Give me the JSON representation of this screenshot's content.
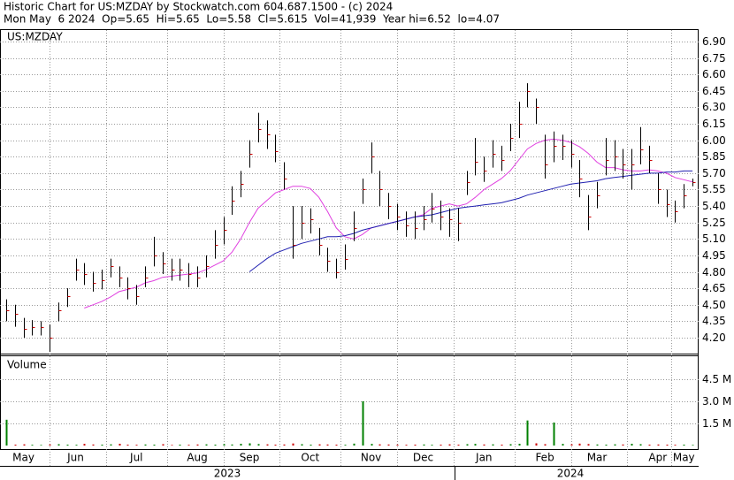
{
  "chart_data": {
    "type": "ohlc",
    "title": "Historic Chart for US:MZDAY by Stockwatch.com 604.687.1500 - (c) 2024",
    "subtitle": "Mon May  6 2024  Op=5.65  Hi=5.65  Lo=5.58  Cl=5.615  Vol=41,939  Year hi=6.52  lo=4.07",
    "symbol_label": "US:MZDAY",
    "categories": [
      null,
      null,
      "May",
      null,
      null,
      null,
      null,
      null,
      "Jun",
      null,
      null,
      null,
      null,
      null,
      null,
      "Jul",
      null,
      null,
      null,
      null,
      null,
      null,
      "Aug",
      null,
      null,
      null,
      null,
      null,
      "Sep",
      null,
      null,
      null,
      null,
      null,
      null,
      "Oct",
      null,
      null,
      null,
      null,
      null,
      null,
      "Nov",
      null,
      null,
      null,
      null,
      null,
      "Dec",
      null,
      null,
      null,
      null,
      null,
      null,
      "Jan",
      null,
      null,
      null,
      null,
      null,
      null,
      "Feb",
      null,
      null,
      null,
      null,
      null,
      "Mar",
      null,
      null,
      null,
      null,
      null,
      null,
      "Apr",
      null,
      null,
      "May",
      null
    ],
    "years": [
      "2023",
      "2024"
    ],
    "high": [
      4.55,
      4.5,
      4.38,
      4.36,
      4.35,
      4.32,
      4.52,
      4.65,
      4.92,
      4.88,
      4.8,
      4.82,
      4.92,
      4.85,
      4.75,
      4.68,
      4.85,
      5.12,
      4.98,
      4.92,
      4.92,
      4.88,
      4.85,
      4.95,
      5.18,
      5.3,
      5.58,
      5.72,
      6.0,
      6.25,
      6.18,
      6.05,
      5.8,
      5.4,
      5.4,
      5.38,
      5.2,
      5.02,
      4.92,
      5.05,
      5.35,
      5.65,
      5.98,
      5.72,
      5.52,
      5.42,
      5.35,
      5.35,
      5.4,
      5.52,
      5.45,
      5.38,
      5.38,
      5.72,
      6.02,
      5.85,
      6.0,
      5.95,
      6.15,
      6.35,
      6.52,
      6.38,
      6.05,
      6.08,
      6.05,
      6.0,
      5.82,
      5.5,
      5.62,
      6.02,
      6.0,
      5.92,
      5.92,
      6.12,
      5.95,
      5.7,
      5.55,
      5.45,
      5.6,
      5.65
    ],
    "low": [
      4.35,
      4.3,
      4.2,
      4.22,
      4.22,
      4.07,
      4.35,
      4.48,
      4.72,
      4.68,
      4.62,
      4.64,
      4.75,
      4.66,
      4.55,
      4.5,
      4.66,
      4.85,
      4.78,
      4.72,
      4.72,
      4.66,
      4.66,
      4.75,
      4.92,
      5.05,
      5.32,
      5.48,
      5.75,
      5.98,
      5.92,
      5.8,
      5.55,
      4.92,
      5.1,
      5.15,
      4.95,
      4.8,
      4.74,
      4.82,
      5.08,
      5.42,
      5.7,
      5.4,
      5.28,
      5.18,
      5.12,
      5.1,
      5.18,
      5.25,
      5.18,
      5.12,
      5.08,
      5.5,
      5.68,
      5.62,
      5.75,
      5.72,
      5.9,
      6.02,
      6.3,
      6.15,
      5.65,
      5.8,
      5.82,
      5.75,
      5.48,
      5.18,
      5.38,
      5.68,
      5.72,
      5.65,
      5.55,
      5.78,
      5.7,
      5.42,
      5.3,
      5.25,
      5.38,
      5.58
    ],
    "close": [
      4.45,
      4.42,
      4.28,
      4.3,
      4.3,
      4.2,
      4.45,
      4.58,
      4.82,
      4.78,
      4.7,
      4.72,
      4.85,
      4.75,
      4.65,
      4.58,
      4.75,
      4.95,
      4.88,
      4.82,
      4.82,
      4.78,
      4.75,
      4.85,
      5.05,
      5.18,
      5.45,
      5.6,
      5.88,
      6.1,
      6.05,
      5.9,
      5.65,
      5.05,
      5.25,
      5.28,
      5.05,
      4.9,
      4.8,
      4.92,
      5.2,
      5.55,
      5.85,
      5.55,
      5.4,
      5.3,
      5.22,
      5.2,
      5.28,
      5.38,
      5.3,
      5.28,
      5.25,
      5.62,
      5.8,
      5.72,
      5.88,
      5.82,
      6.02,
      6.15,
      6.45,
      6.3,
      5.78,
      5.95,
      5.95,
      5.88,
      5.65,
      5.3,
      5.5,
      5.82,
      5.85,
      5.78,
      5.78,
      5.92,
      5.82,
      5.55,
      5.42,
      5.35,
      5.5,
      5.615
    ],
    "bar_color": "#000000",
    "close_color": "#cc0000",
    "ma_short": {
      "color": "#e040e0",
      "values": [
        null,
        null,
        null,
        null,
        null,
        null,
        null,
        null,
        null,
        4.47,
        4.5,
        4.53,
        4.57,
        4.62,
        4.64,
        4.66,
        4.7,
        4.72,
        4.75,
        4.76,
        4.77,
        4.78,
        4.79,
        4.82,
        4.86,
        4.9,
        4.98,
        5.1,
        5.25,
        5.38,
        5.45,
        5.52,
        5.55,
        5.58,
        5.58,
        5.56,
        5.48,
        5.35,
        5.2,
        5.12,
        5.1,
        5.14,
        5.2,
        5.22,
        5.24,
        5.26,
        5.28,
        5.3,
        5.32,
        5.38,
        5.4,
        5.42,
        5.4,
        5.42,
        5.48,
        5.55,
        5.6,
        5.65,
        5.72,
        5.82,
        5.92,
        5.97,
        6.0,
        6.01,
        6.0,
        5.98,
        5.94,
        5.88,
        5.8,
        5.75,
        5.75,
        5.73,
        5.72,
        5.72,
        5.73,
        5.72,
        5.7,
        5.66,
        5.64,
        5.62
      ]
    },
    "ma_long": {
      "color": "#2020b0",
      "values": [
        null,
        null,
        null,
        null,
        null,
        null,
        null,
        null,
        null,
        null,
        null,
        null,
        null,
        null,
        null,
        null,
        null,
        null,
        null,
        null,
        null,
        null,
        null,
        null,
        null,
        null,
        null,
        null,
        4.8,
        4.86,
        4.92,
        4.97,
        5.0,
        5.03,
        5.06,
        5.08,
        5.1,
        5.12,
        5.12,
        5.13,
        5.15,
        5.18,
        5.2,
        5.22,
        5.24,
        5.26,
        5.28,
        5.3,
        5.31,
        5.32,
        5.34,
        5.36,
        5.38,
        5.39,
        5.4,
        5.41,
        5.42,
        5.43,
        5.45,
        5.47,
        5.5,
        5.52,
        5.54,
        5.56,
        5.58,
        5.6,
        5.61,
        5.62,
        5.63,
        5.65,
        5.66,
        5.67,
        5.68,
        5.69,
        5.7,
        5.7,
        5.71,
        5.71,
        5.72,
        5.72
      ]
    },
    "ylim": [
      4.055,
      6.98
    ],
    "yticks": [
      {
        "value": 4.2,
        "label": "4.20"
      },
      4.35,
      {
        "value": 4.5,
        "label": "4.50"
      },
      4.65,
      {
        "value": 4.8,
        "label": "4.80"
      },
      4.95,
      {
        "value": 5.1,
        "label": "5.10"
      },
      5.25,
      {
        "value": 5.4,
        "label": "5.40"
      },
      5.55,
      {
        "value": 5.7,
        "label": "5.70"
      },
      5.85,
      {
        "value": 6.0,
        "label": "6.00"
      },
      6.15,
      {
        "value": 6.3,
        "label": "6.30"
      },
      6.45,
      {
        "value": 6.6,
        "label": "6.60"
      },
      6.75,
      {
        "value": 6.9,
        "label": "6.90"
      }
    ],
    "grid": true,
    "volume": {
      "label": "Volume",
      "up_color": "#008000",
      "down_color": "#cc0000",
      "values": [
        1750000,
        60000,
        80000,
        50000,
        40000,
        70000,
        90000,
        60000,
        50000,
        110000,
        70000,
        60000,
        80000,
        120000,
        60000,
        50000,
        70000,
        60000,
        90000,
        40000,
        60000,
        50000,
        70000,
        80000,
        60000,
        90000,
        70000,
        120000,
        150000,
        100000,
        80000,
        60000,
        70000,
        140000,
        90000,
        60000,
        80000,
        70000,
        60000,
        50000,
        130000,
        3000000,
        110000,
        80000,
        70000,
        60000,
        50000,
        60000,
        70000,
        50000,
        60000,
        80000,
        60000,
        90000,
        110000,
        70000,
        80000,
        60000,
        90000,
        120000,
        1700000,
        150000,
        90000,
        1560000,
        110000,
        80000,
        130000,
        100000,
        70000,
        60000,
        80000,
        70000,
        120000,
        90000,
        60000,
        70000,
        60000,
        50000,
        60000,
        41939
      ],
      "ylim": [
        0,
        6120000
      ],
      "yticks": [
        {
          "value": 1500000,
          "label": "1.5 M"
        },
        {
          "value": 3000000,
          "label": "3.0 M"
        },
        {
          "value": 4500000,
          "label": "4.5 M"
        }
      ]
    }
  }
}
